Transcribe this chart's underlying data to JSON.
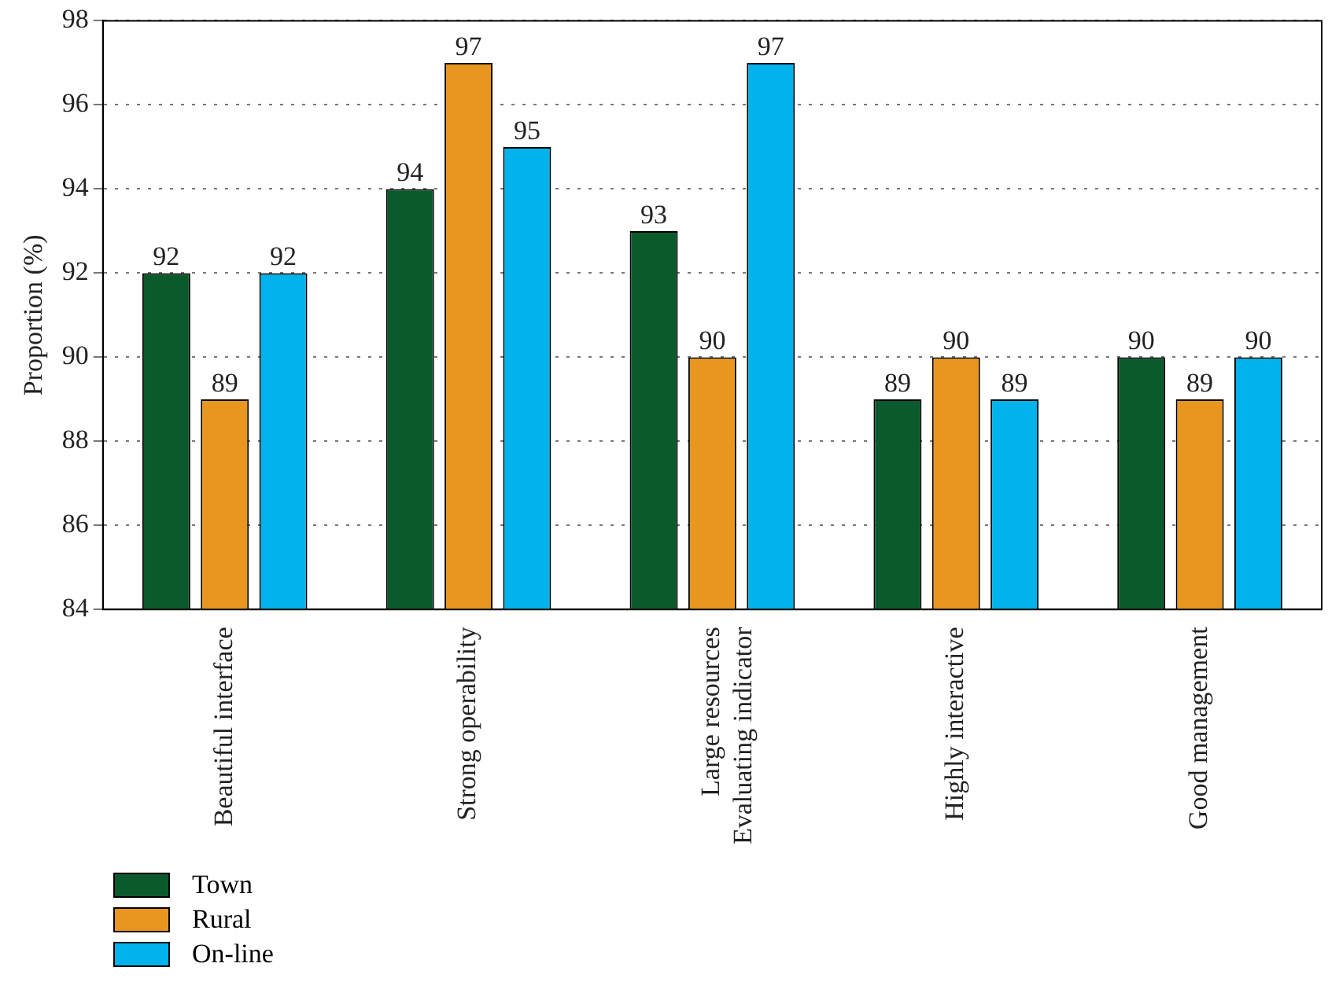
{
  "chart_data": {
    "type": "bar",
    "ylabel": "Proportion (%)",
    "categories": [
      "Beautiful interface",
      "Strong operability",
      "Large resources\nEvaluating indicator",
      "Highly interactive",
      "Good management"
    ],
    "series": [
      {
        "name": "Town",
        "color": "#0b5a2c",
        "values": [
          92,
          94,
          93,
          89,
          90
        ]
      },
      {
        "name": "Rural",
        "color": "#e8961f",
        "values": [
          89,
          97,
          90,
          90,
          89
        ]
      },
      {
        "name": "On-line",
        "color": "#00b3ec",
        "values": [
          92,
          95,
          97,
          89,
          90
        ]
      }
    ],
    "ylim": [
      84,
      98
    ],
    "yticks": [
      84,
      86,
      88,
      90,
      92,
      94,
      96,
      98
    ],
    "grid": "y",
    "legend": "bottom left",
    "data_labels": true
  }
}
